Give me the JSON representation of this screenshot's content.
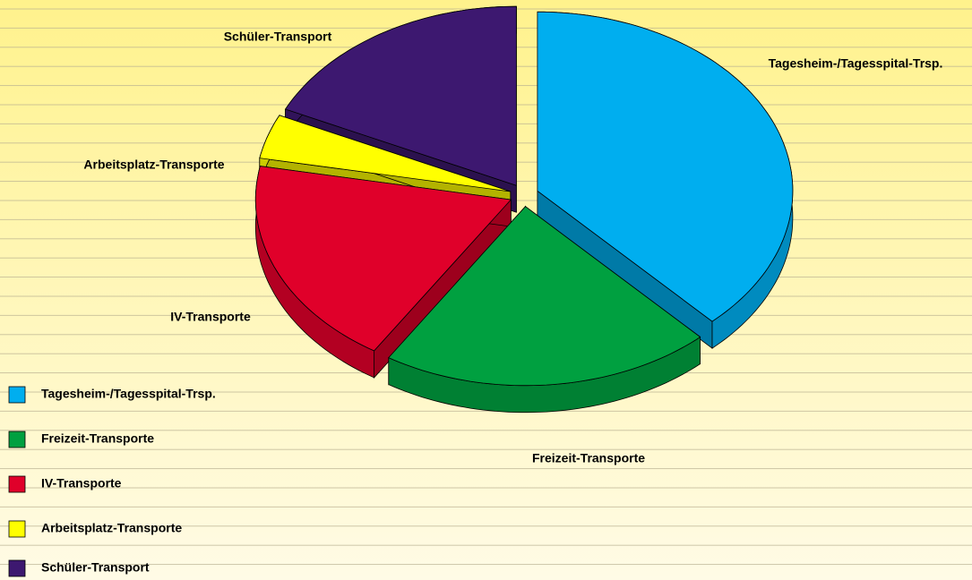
{
  "chart_data": {
    "type": "pie",
    "categories": [
      "Tagesheim-/Tagesspital-Trsp.",
      "Freizeit-Transporte",
      "IV-Transporte",
      "Arbeitsplatz-Transporte",
      "Schüler-Transport"
    ],
    "values": [
      38,
      21,
      19,
      4,
      18
    ],
    "colors": [
      "#00aeef",
      "#00a040",
      "#e0002a",
      "#ffff00",
      "#3d1870"
    ],
    "legend": "bottom-left"
  }
}
